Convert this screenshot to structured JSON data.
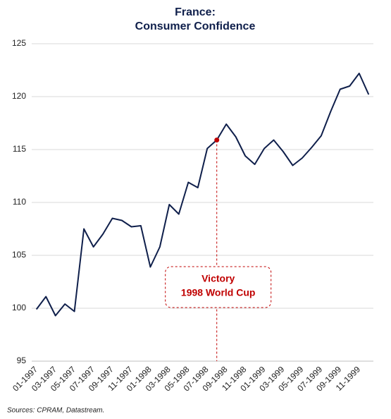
{
  "chart_data": {
    "type": "line",
    "title": [
      "France:",
      "Consumer Confidence"
    ],
    "source": "Sources: CPRAM, Datastream.",
    "categories": [
      "01-1997",
      null,
      "03-1997",
      null,
      "05-1997",
      null,
      "07-1997",
      null,
      "09-1997",
      null,
      "11-1997",
      null,
      "01-1998",
      null,
      "03-1998",
      null,
      "05-1998",
      null,
      "07-1998",
      null,
      "09-1998",
      null,
      "11-1998",
      null,
      "01-1999",
      null,
      "03-1999",
      null,
      "05-1999",
      null,
      "07-1999",
      null,
      "09-1999",
      null,
      "11-1999",
      null
    ],
    "series": [
      {
        "name": "Consumer Confidence",
        "color": "#0f1f4b",
        "values": [
          99.9,
          101.1,
          99.3,
          100.4,
          99.7,
          107.5,
          105.8,
          107.0,
          108.5,
          108.3,
          107.7,
          107.8,
          103.9,
          105.8,
          109.8,
          108.9,
          111.9,
          111.4,
          115.1,
          115.9,
          117.4,
          116.2,
          114.4,
          113.6,
          115.1,
          115.9,
          114.8,
          113.5,
          114.2,
          115.2,
          116.3,
          118.6,
          120.7,
          121.0,
          122.2,
          120.2
        ]
      }
    ],
    "annotation": {
      "lines": [
        "Victory",
        "1998 World Cup"
      ],
      "value": 115.9,
      "color": "#c00000"
    },
    "ylim": [
      95,
      125
    ],
    "yticks": [
      95,
      100,
      105,
      110,
      115,
      120,
      125
    ],
    "grid": true
  }
}
